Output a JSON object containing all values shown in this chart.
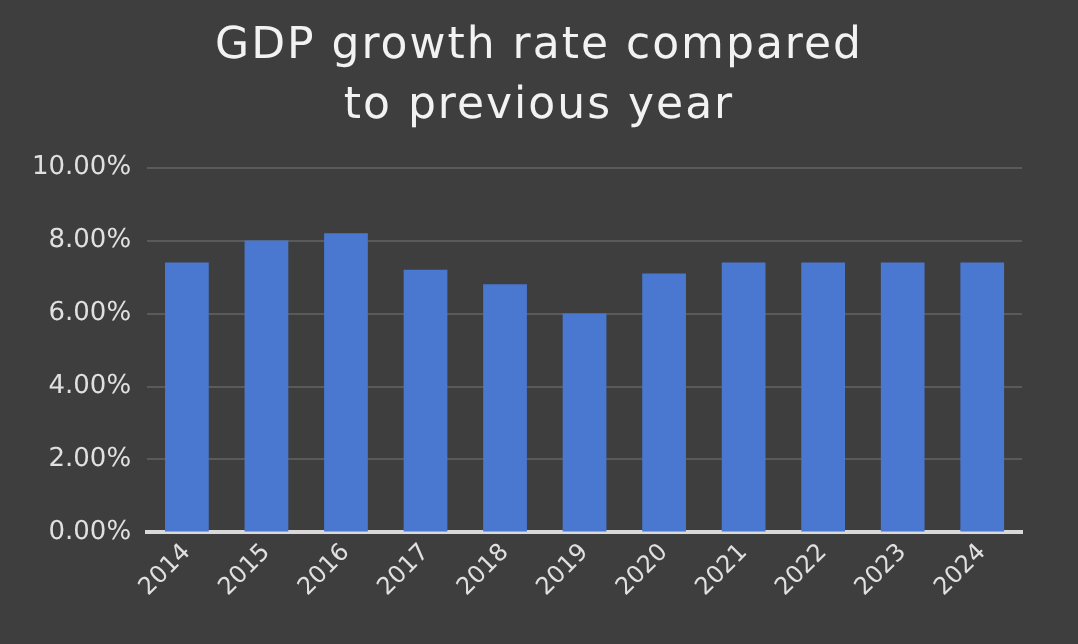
{
  "chart_data": {
    "type": "bar",
    "title": "GDP growth rate compared to previous year",
    "categories": [
      "2014",
      "2015",
      "2016",
      "2017",
      "2018",
      "2019",
      "2020",
      "2021",
      "2022",
      "2023",
      "2024"
    ],
    "values": [
      7.4,
      8.0,
      8.2,
      7.2,
      6.8,
      6.0,
      7.1,
      7.4,
      7.4,
      7.4,
      7.4
    ],
    "color": "#4a78d0",
    "ylim": [
      0,
      10
    ],
    "yticks": [
      {
        "value": 0,
        "label": "0.00%"
      },
      {
        "value": 2,
        "label": "2.00%"
      },
      {
        "value": 4,
        "label": "4.00%"
      },
      {
        "value": 6,
        "label": "6.00%"
      },
      {
        "value": 8,
        "label": "8.00%"
      },
      {
        "value": 10,
        "label": "10.00%"
      }
    ],
    "grid": "y",
    "legend": false
  }
}
